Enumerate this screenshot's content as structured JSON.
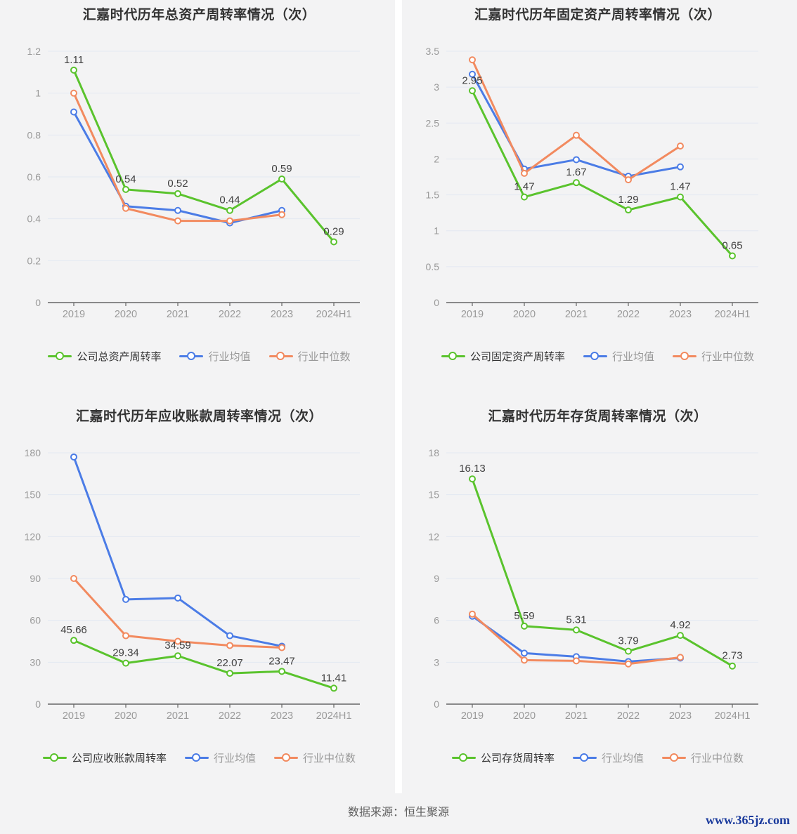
{
  "footer": {
    "source_note": "数据来源：恒生聚源",
    "watermark": "www.365jz.com"
  },
  "colors": {
    "company": "#5AC32D",
    "industry_avg": "#4B7CE6",
    "industry_median": "#F28A5F",
    "grid_line": "#E3E8F2",
    "axis_line": "#666666",
    "tick_label": "#999999",
    "data_label": "#404040",
    "panel_bg": "#F3F3F4",
    "title": "#333333",
    "site_link": "#1A3A9C"
  },
  "chart_data": [
    {
      "type": "line",
      "title": "汇嘉时代历年总资产周转率情况（次）",
      "categories": [
        "2019",
        "2020",
        "2021",
        "2022",
        "2023",
        "2024H1"
      ],
      "ylim": [
        0,
        1.2
      ],
      "yticks": [
        "0",
        "0.2",
        "0.4",
        "0.6",
        "0.8",
        "1",
        "1.2"
      ],
      "grid": true,
      "legend_position": "bottom",
      "series": [
        {
          "name": "公司总资产周转率",
          "role": "company",
          "values": [
            1.11,
            0.54,
            0.52,
            0.44,
            0.59,
            0.29
          ],
          "labels": [
            "1.11",
            "0.54",
            "0.52",
            "0.44",
            "0.59",
            "0.29"
          ]
        },
        {
          "name": "行业均值",
          "role": "industry_avg",
          "values": [
            0.91,
            0.46,
            0.44,
            0.38,
            0.44,
            null
          ]
        },
        {
          "name": "行业中位数",
          "role": "industry_median",
          "values": [
            1.0,
            0.45,
            0.39,
            0.39,
            0.42,
            null
          ]
        }
      ]
    },
    {
      "type": "line",
      "title": "汇嘉时代历年固定资产周转率情况（次）",
      "categories": [
        "2019",
        "2020",
        "2021",
        "2022",
        "2023",
        "2024H1"
      ],
      "ylim": [
        0,
        3.5
      ],
      "yticks": [
        "0",
        "0.5",
        "1",
        "1.5",
        "2",
        "2.5",
        "3",
        "3.5"
      ],
      "grid": true,
      "legend_position": "bottom",
      "series": [
        {
          "name": "公司固定资产周转率",
          "role": "company",
          "values": [
            2.95,
            1.47,
            1.67,
            1.29,
            1.47,
            0.65
          ],
          "labels": [
            "2.95",
            "1.47",
            "1.67",
            "1.29",
            "1.47",
            "0.65"
          ]
        },
        {
          "name": "行业均值",
          "role": "industry_avg",
          "values": [
            3.18,
            1.86,
            1.99,
            1.76,
            1.89,
            null
          ]
        },
        {
          "name": "行业中位数",
          "role": "industry_median",
          "values": [
            3.38,
            1.8,
            2.33,
            1.71,
            2.18,
            null
          ]
        }
      ]
    },
    {
      "type": "line",
      "title": "汇嘉时代历年应收账款周转率情况（次）",
      "categories": [
        "2019",
        "2020",
        "2021",
        "2022",
        "2023",
        "2024H1"
      ],
      "ylim": [
        0,
        180
      ],
      "yticks": [
        "0",
        "30",
        "60",
        "90",
        "120",
        "150",
        "180"
      ],
      "grid": true,
      "legend_position": "bottom",
      "series": [
        {
          "name": "公司应收账款周转率",
          "role": "company",
          "values": [
            45.66,
            29.34,
            34.59,
            22.07,
            23.47,
            11.41
          ],
          "labels": [
            "45.66",
            "29.34",
            "34.59",
            "22.07",
            "23.47",
            "11.41"
          ]
        },
        {
          "name": "行业均值",
          "role": "industry_avg",
          "values": [
            177,
            75,
            76,
            49,
            41.5,
            null
          ]
        },
        {
          "name": "行业中位数",
          "role": "industry_median",
          "values": [
            90,
            49,
            45,
            42,
            40.5,
            null
          ]
        }
      ]
    },
    {
      "type": "line",
      "title": "汇嘉时代历年存货周转率情况（次）",
      "categories": [
        "2019",
        "2020",
        "2021",
        "2022",
        "2023",
        "2024H1"
      ],
      "ylim": [
        0,
        18
      ],
      "yticks": [
        "0",
        "3",
        "6",
        "9",
        "12",
        "15",
        "18"
      ],
      "grid": true,
      "legend_position": "bottom",
      "series": [
        {
          "name": "公司存货周转率",
          "role": "company",
          "values": [
            16.13,
            5.59,
            5.31,
            3.79,
            4.92,
            2.73
          ],
          "labels": [
            "16.13",
            "5.59",
            "5.31",
            "3.79",
            "4.92",
            "2.73"
          ]
        },
        {
          "name": "行业均值",
          "role": "industry_avg",
          "values": [
            6.3,
            3.65,
            3.4,
            3.05,
            3.3,
            null
          ]
        },
        {
          "name": "行业中位数",
          "role": "industry_median",
          "values": [
            6.45,
            3.15,
            3.1,
            2.88,
            3.35,
            null
          ]
        }
      ]
    }
  ]
}
